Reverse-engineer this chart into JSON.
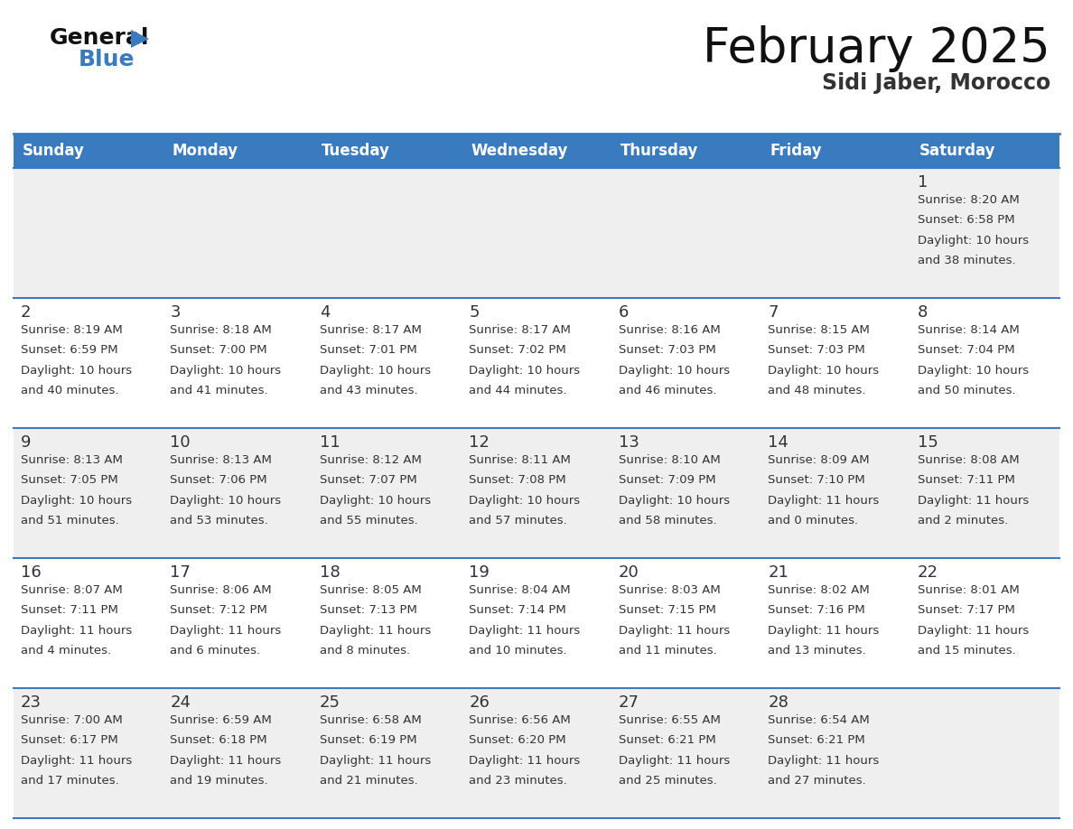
{
  "title": "February 2025",
  "subtitle": "Sidi Jaber, Morocco",
  "days_of_week": [
    "Sunday",
    "Monday",
    "Tuesday",
    "Wednesday",
    "Thursday",
    "Friday",
    "Saturday"
  ],
  "header_bg": "#3a7bbf",
  "header_text": "#ffffff",
  "bg_color": "#ffffff",
  "row_alt_color": "#efefef",
  "cell_border_color": "#3a7bbf",
  "day_number_color": "#333333",
  "info_text_color": "#333333",
  "title_color": "#111111",
  "subtitle_color": "#333333",
  "calendar": [
    [
      {
        "day": null,
        "sunrise": null,
        "sunset": null,
        "daylight": null
      },
      {
        "day": null,
        "sunrise": null,
        "sunset": null,
        "daylight": null
      },
      {
        "day": null,
        "sunrise": null,
        "sunset": null,
        "daylight": null
      },
      {
        "day": null,
        "sunrise": null,
        "sunset": null,
        "daylight": null
      },
      {
        "day": null,
        "sunrise": null,
        "sunset": null,
        "daylight": null
      },
      {
        "day": null,
        "sunrise": null,
        "sunset": null,
        "daylight": null
      },
      {
        "day": 1,
        "sunrise": "8:20 AM",
        "sunset": "6:58 PM",
        "daylight_line1": "Daylight: 10 hours",
        "daylight_line2": "and 38 minutes."
      }
    ],
    [
      {
        "day": 2,
        "sunrise": "8:19 AM",
        "sunset": "6:59 PM",
        "daylight_line1": "Daylight: 10 hours",
        "daylight_line2": "and 40 minutes."
      },
      {
        "day": 3,
        "sunrise": "8:18 AM",
        "sunset": "7:00 PM",
        "daylight_line1": "Daylight: 10 hours",
        "daylight_line2": "and 41 minutes."
      },
      {
        "day": 4,
        "sunrise": "8:17 AM",
        "sunset": "7:01 PM",
        "daylight_line1": "Daylight: 10 hours",
        "daylight_line2": "and 43 minutes."
      },
      {
        "day": 5,
        "sunrise": "8:17 AM",
        "sunset": "7:02 PM",
        "daylight_line1": "Daylight: 10 hours",
        "daylight_line2": "and 44 minutes."
      },
      {
        "day": 6,
        "sunrise": "8:16 AM",
        "sunset": "7:03 PM",
        "daylight_line1": "Daylight: 10 hours",
        "daylight_line2": "and 46 minutes."
      },
      {
        "day": 7,
        "sunrise": "8:15 AM",
        "sunset": "7:03 PM",
        "daylight_line1": "Daylight: 10 hours",
        "daylight_line2": "and 48 minutes."
      },
      {
        "day": 8,
        "sunrise": "8:14 AM",
        "sunset": "7:04 PM",
        "daylight_line1": "Daylight: 10 hours",
        "daylight_line2": "and 50 minutes."
      }
    ],
    [
      {
        "day": 9,
        "sunrise": "8:13 AM",
        "sunset": "7:05 PM",
        "daylight_line1": "Daylight: 10 hours",
        "daylight_line2": "and 51 minutes."
      },
      {
        "day": 10,
        "sunrise": "8:13 AM",
        "sunset": "7:06 PM",
        "daylight_line1": "Daylight: 10 hours",
        "daylight_line2": "and 53 minutes."
      },
      {
        "day": 11,
        "sunrise": "8:12 AM",
        "sunset": "7:07 PM",
        "daylight_line1": "Daylight: 10 hours",
        "daylight_line2": "and 55 minutes."
      },
      {
        "day": 12,
        "sunrise": "8:11 AM",
        "sunset": "7:08 PM",
        "daylight_line1": "Daylight: 10 hours",
        "daylight_line2": "and 57 minutes."
      },
      {
        "day": 13,
        "sunrise": "8:10 AM",
        "sunset": "7:09 PM",
        "daylight_line1": "Daylight: 10 hours",
        "daylight_line2": "and 58 minutes."
      },
      {
        "day": 14,
        "sunrise": "8:09 AM",
        "sunset": "7:10 PM",
        "daylight_line1": "Daylight: 11 hours",
        "daylight_line2": "and 0 minutes."
      },
      {
        "day": 15,
        "sunrise": "8:08 AM",
        "sunset": "7:11 PM",
        "daylight_line1": "Daylight: 11 hours",
        "daylight_line2": "and 2 minutes."
      }
    ],
    [
      {
        "day": 16,
        "sunrise": "8:07 AM",
        "sunset": "7:11 PM",
        "daylight_line1": "Daylight: 11 hours",
        "daylight_line2": "and 4 minutes."
      },
      {
        "day": 17,
        "sunrise": "8:06 AM",
        "sunset": "7:12 PM",
        "daylight_line1": "Daylight: 11 hours",
        "daylight_line2": "and 6 minutes."
      },
      {
        "day": 18,
        "sunrise": "8:05 AM",
        "sunset": "7:13 PM",
        "daylight_line1": "Daylight: 11 hours",
        "daylight_line2": "and 8 minutes."
      },
      {
        "day": 19,
        "sunrise": "8:04 AM",
        "sunset": "7:14 PM",
        "daylight_line1": "Daylight: 11 hours",
        "daylight_line2": "and 10 minutes."
      },
      {
        "day": 20,
        "sunrise": "8:03 AM",
        "sunset": "7:15 PM",
        "daylight_line1": "Daylight: 11 hours",
        "daylight_line2": "and 11 minutes."
      },
      {
        "day": 21,
        "sunrise": "8:02 AM",
        "sunset": "7:16 PM",
        "daylight_line1": "Daylight: 11 hours",
        "daylight_line2": "and 13 minutes."
      },
      {
        "day": 22,
        "sunrise": "8:01 AM",
        "sunset": "7:17 PM",
        "daylight_line1": "Daylight: 11 hours",
        "daylight_line2": "and 15 minutes."
      }
    ],
    [
      {
        "day": 23,
        "sunrise": "7:00 AM",
        "sunset": "6:17 PM",
        "daylight_line1": "Daylight: 11 hours",
        "daylight_line2": "and 17 minutes."
      },
      {
        "day": 24,
        "sunrise": "6:59 AM",
        "sunset": "6:18 PM",
        "daylight_line1": "Daylight: 11 hours",
        "daylight_line2": "and 19 minutes."
      },
      {
        "day": 25,
        "sunrise": "6:58 AM",
        "sunset": "6:19 PM",
        "daylight_line1": "Daylight: 11 hours",
        "daylight_line2": "and 21 minutes."
      },
      {
        "day": 26,
        "sunrise": "6:56 AM",
        "sunset": "6:20 PM",
        "daylight_line1": "Daylight: 11 hours",
        "daylight_line2": "and 23 minutes."
      },
      {
        "day": 27,
        "sunrise": "6:55 AM",
        "sunset": "6:21 PM",
        "daylight_line1": "Daylight: 11 hours",
        "daylight_line2": "and 25 minutes."
      },
      {
        "day": 28,
        "sunrise": "6:54 AM",
        "sunset": "6:21 PM",
        "daylight_line1": "Daylight: 11 hours",
        "daylight_line2": "and 27 minutes."
      },
      {
        "day": null,
        "sunrise": null,
        "sunset": null,
        "daylight_line1": null,
        "daylight_line2": null
      }
    ]
  ],
  "logo_general_color": "#111111",
  "logo_blue_color": "#3a7bbf",
  "logo_triangle_color": "#3a7bbf"
}
